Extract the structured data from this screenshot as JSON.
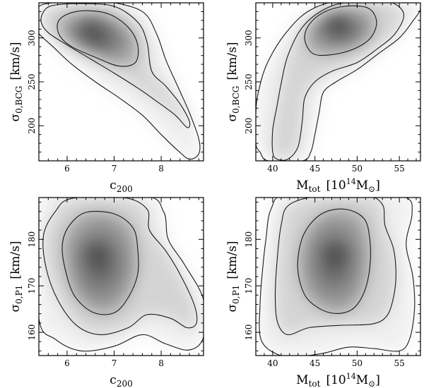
{
  "chart_data": [
    {
      "type": "contour",
      "id": "c200-sigmaBCG",
      "xlabel": {
        "base": "c",
        "sub": "200"
      },
      "ylabel": {
        "base": "σ",
        "sub": "0,BCG",
        "unit": "[km/s]"
      },
      "xlim": [
        5.4,
        8.9
      ],
      "ylim": [
        160,
        340
      ],
      "xticks": [
        6,
        7,
        8
      ],
      "xtick_labels": [
        "6",
        "7",
        "8"
      ],
      "yticks": [
        200,
        250,
        300
      ],
      "ytick_labels": [
        "200",
        "250",
        "300"
      ],
      "peak": {
        "x": 6.5,
        "y": 312
      },
      "contours": [
        {
          "level": "inner",
          "points": [
            [
              5.8,
              317
            ],
            [
              6.0,
              327
            ],
            [
              6.4,
              331
            ],
            [
              6.9,
              327
            ],
            [
              7.3,
              312
            ],
            [
              7.5,
              292
            ],
            [
              7.45,
              272
            ],
            [
              7.1,
              268
            ],
            [
              6.6,
              278
            ],
            [
              6.1,
              290
            ],
            [
              5.85,
              302
            ]
          ]
        },
        {
          "level": "middle",
          "points": [
            [
              5.5,
              330
            ],
            [
              5.7,
              337
            ],
            [
              6.3,
              339
            ],
            [
              7.0,
              336
            ],
            [
              7.5,
              318
            ],
            [
              7.7,
              295
            ],
            [
              7.8,
              262
            ],
            [
              8.1,
              245
            ],
            [
              8.4,
              225
            ],
            [
              8.6,
              205
            ],
            [
              8.55,
              198
            ],
            [
              8.3,
              212
            ],
            [
              7.9,
              228
            ],
            [
              7.5,
              243
            ],
            [
              7.0,
              260
            ],
            [
              6.5,
              276
            ],
            [
              6.0,
              292
            ],
            [
              5.6,
              306
            ],
            [
              5.45,
              318
            ]
          ]
        },
        {
          "level": "outer",
          "points": [
            [
              5.4,
              312
            ],
            [
              5.4,
              336
            ],
            [
              6.2,
              342
            ],
            [
              6.9,
              341
            ],
            [
              7.6,
              330
            ],
            [
              7.9,
              305
            ],
            [
              8.1,
              275
            ],
            [
              8.35,
              245
            ],
            [
              8.6,
              215
            ],
            [
              8.8,
              185
            ],
            [
              8.8,
              168
            ],
            [
              8.6,
              162
            ],
            [
              8.35,
              172
            ],
            [
              8.0,
              190
            ],
            [
              7.6,
              212
            ],
            [
              7.1,
              232
            ],
            [
              6.6,
              250
            ],
            [
              6.1,
              270
            ],
            [
              5.7,
              290
            ],
            [
              5.4,
              305
            ]
          ]
        }
      ]
    },
    {
      "type": "contour",
      "id": "Mtot-sigmaBCG",
      "xlabel": {
        "base": "M",
        "sub": "tot",
        "unit": "[10",
        "unit_sup": "14",
        "unit_end": "M",
        "unit_end_sub": "⊙",
        "unit_close": "]"
      },
      "ylabel": {
        "base": "σ",
        "sub": "0,BCG",
        "unit": "[km/s]"
      },
      "xlim": [
        38,
        57.5
      ],
      "ylim": [
        160,
        340
      ],
      "xticks": [
        40,
        45,
        50,
        55
      ],
      "xtick_labels": [
        "40",
        "45",
        "50",
        "55"
      ],
      "yticks": [
        200,
        250,
        300
      ],
      "ytick_labels": [
        "200",
        "250",
        "300"
      ],
      "peak": {
        "x": 47.5,
        "y": 318
      },
      "contours": [
        {
          "level": "inner",
          "points": [
            [
              43.8,
              298
            ],
            [
              44.3,
              315
            ],
            [
              46.0,
              329
            ],
            [
              48.5,
              336
            ],
            [
              51.3,
              334
            ],
            [
              52.3,
              318
            ],
            [
              51.5,
              299
            ],
            [
              49.5,
              287
            ],
            [
              47.0,
              281
            ],
            [
              44.8,
              282
            ]
          ]
        },
        {
          "level": "middle",
          "points": [
            [
              41.0,
              248
            ],
            [
              41.8,
              280
            ],
            [
              43.5,
              312
            ],
            [
              46.0,
              332
            ],
            [
              49.0,
              341
            ],
            [
              53.5,
              342
            ],
            [
              55.5,
              328
            ],
            [
              54.5,
              305
            ],
            [
              52.3,
              287
            ],
            [
              50.0,
              272
            ],
            [
              47.0,
              262
            ],
            [
              45.0,
              250
            ],
            [
              43.8,
              232
            ],
            [
              43.5,
              205
            ],
            [
              43.0,
              176
            ],
            [
              41.8,
              162
            ],
            [
              40.5,
              162
            ],
            [
              40.0,
              170
            ],
            [
              40.0,
              195
            ],
            [
              40.5,
              222
            ]
          ]
        },
        {
          "level": "outer",
          "points": [
            [
              38.3,
              238
            ],
            [
              39.3,
              270
            ],
            [
              41.5,
              305
            ],
            [
              44.5,
              332
            ],
            [
              49.0,
              344
            ],
            [
              56.5,
              344
            ],
            [
              57.5,
              334
            ],
            [
              56.5,
              318
            ],
            [
              55.0,
              300
            ],
            [
              52.5,
              282
            ],
            [
              50.0,
              264
            ],
            [
              47.5,
              250
            ],
            [
              46.0,
              238
            ],
            [
              45.5,
              215
            ],
            [
              45.0,
              190
            ],
            [
              44.5,
              170
            ],
            [
              43.5,
              160
            ],
            [
              39.5,
              160
            ],
            [
              38.5,
              170
            ],
            [
              38.0,
              180
            ],
            [
              38.0,
              215
            ]
          ]
        }
      ]
    },
    {
      "type": "contour",
      "id": "c200-sigmaP1",
      "xlabel": {
        "base": "c",
        "sub": "200"
      },
      "ylabel": {
        "base": "σ",
        "sub": "0,P1",
        "unit": "[km/s]"
      },
      "xlim": [
        5.4,
        8.9
      ],
      "ylim": [
        155,
        189
      ],
      "xticks": [
        6,
        7,
        8
      ],
      "xtick_labels": [
        "6",
        "7",
        "8"
      ],
      "yticks": [
        160,
        170,
        180
      ],
      "ytick_labels": [
        "160",
        "170",
        "180"
      ],
      "peak": {
        "x": 6.6,
        "y": 177
      },
      "contours": [
        {
          "level": "inner",
          "points": [
            [
              6.05,
              183
            ],
            [
              6.4,
              185.8
            ],
            [
              7.0,
              185.5
            ],
            [
              7.4,
              182.5
            ],
            [
              7.5,
              178
            ],
            [
              7.5,
              172.5
            ],
            [
              7.3,
              167.5
            ],
            [
              7.0,
              164.2
            ],
            [
              6.55,
              164.3
            ],
            [
              6.15,
              168
            ],
            [
              5.95,
              174
            ],
            [
              5.9,
              179
            ]
          ]
        },
        {
          "level": "middle",
          "points": [
            [
              5.75,
              186
            ],
            [
              6.1,
              188.8
            ],
            [
              7.2,
              189
            ],
            [
              7.7,
              186.5
            ],
            [
              7.75,
              182
            ],
            [
              8.1,
              177.5
            ],
            [
              8.4,
              172.5
            ],
            [
              8.7,
              166
            ],
            [
              8.75,
              162
            ],
            [
              8.55,
              161
            ],
            [
              8.2,
              163
            ],
            [
              7.7,
              163.8
            ],
            [
              7.3,
              161
            ],
            [
              6.7,
              159.5
            ],
            [
              6.2,
              161.5
            ],
            [
              5.8,
              167
            ],
            [
              5.55,
              174
            ],
            [
              5.5,
              181
            ]
          ]
        },
        {
          "level": "outer",
          "points": [
            [
              5.4,
              183
            ],
            [
              5.5,
              189.5
            ],
            [
              7.6,
              189.5
            ],
            [
              8.05,
              186
            ],
            [
              8.15,
              180
            ],
            [
              8.5,
              174.5
            ],
            [
              8.9,
              167
            ],
            [
              8.9,
              159
            ],
            [
              8.6,
              156.2
            ],
            [
              8.1,
              157.5
            ],
            [
              7.6,
              159.5
            ],
            [
              7.0,
              157
            ],
            [
              6.3,
              156
            ],
            [
              5.75,
              158.5
            ],
            [
              5.4,
              163
            ]
          ]
        }
      ]
    },
    {
      "type": "contour",
      "id": "Mtot-sigmaP1",
      "xlabel": {
        "base": "M",
        "sub": "tot",
        "unit": "[10",
        "unit_sup": "14",
        "unit_end": "M",
        "unit_end_sub": "⊙",
        "unit_close": "]"
      },
      "ylabel": {
        "base": "σ",
        "sub": "0,P1",
        "unit": "[km/s]"
      },
      "xlim": [
        38,
        57.5
      ],
      "ylim": [
        155,
        189
      ],
      "xticks": [
        40,
        45,
        50,
        55
      ],
      "xtick_labels": [
        "40",
        "45",
        "50",
        "55"
      ],
      "yticks": [
        160,
        170,
        180
      ],
      "ytick_labels": [
        "160",
        "170",
        "180"
      ],
      "peak": {
        "x": 47.5,
        "y": 177
      },
      "contours": [
        {
          "level": "inner",
          "points": [
            [
              43.0,
              176
            ],
            [
              43.8,
              181.5
            ],
            [
              45.8,
              185.5
            ],
            [
              48.5,
              186.5
            ],
            [
              50.8,
              184.5
            ],
            [
              51.5,
              180
            ],
            [
              51.5,
              174
            ],
            [
              50.8,
              168.5
            ],
            [
              49.3,
              164.8
            ],
            [
              46.8,
              164.2
            ],
            [
              44.3,
              166.8
            ],
            [
              43.2,
              171
            ]
          ]
        },
        {
          "level": "middle",
          "points": [
            [
              41.0,
              183
            ],
            [
              42.0,
              187.5
            ],
            [
              46.0,
              189.5
            ],
            [
              51.0,
              189.5
            ],
            [
              53.0,
              187.5
            ],
            [
              53.3,
              183
            ],
            [
              54.3,
              178
            ],
            [
              54.6,
              172.5
            ],
            [
              54.3,
              167.5
            ],
            [
              53.5,
              163.5
            ],
            [
              51.8,
              161.8
            ],
            [
              48.0,
              161.5
            ],
            [
              44.3,
              161
            ],
            [
              41.8,
              159.5
            ],
            [
              40.6,
              162
            ],
            [
              40.3,
              167.5
            ],
            [
              40.5,
              175
            ]
          ]
        },
        {
          "level": "outer",
          "points": [
            [
              39.2,
              180
            ],
            [
              39.8,
              186.5
            ],
            [
              41.8,
              189.8
            ],
            [
              51.0,
              190
            ],
            [
              55.8,
              189
            ],
            [
              56.5,
              185.5
            ],
            [
              55.8,
              179
            ],
            [
              56.6,
              172
            ],
            [
              56.8,
              165
            ],
            [
              56.2,
              158.5
            ],
            [
              55.0,
              156
            ],
            [
              52.0,
              156.5
            ],
            [
              49.0,
              156.8
            ],
            [
              46.0,
              155.5
            ],
            [
              43.0,
              154.8
            ],
            [
              40.5,
              155.3
            ],
            [
              38.6,
              158.5
            ],
            [
              38.5,
              166
            ],
            [
              38.8,
              173.5
            ]
          ]
        }
      ]
    }
  ]
}
